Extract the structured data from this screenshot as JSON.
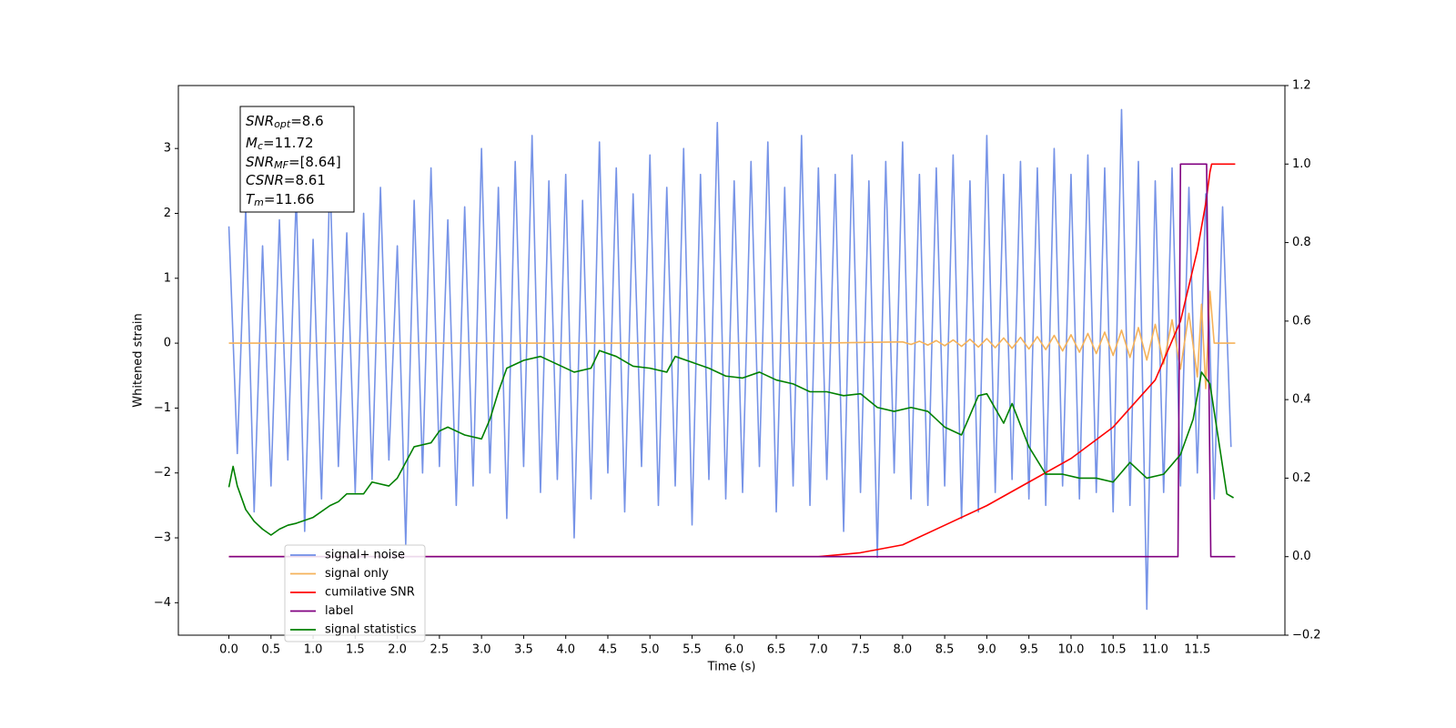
{
  "chart_data": {
    "type": "line",
    "xlabel": "Time (s)",
    "ylabel": "Whitened strain",
    "xlim": [
      -0.6,
      12.54
    ],
    "ylim": [
      -4.5,
      3.97
    ],
    "y2lim": [
      -0.2,
      1.2
    ],
    "xticks": [
      {
        "value": 0,
        "label": "0.0"
      },
      0.5,
      {
        "value": 1,
        "label": "1.0"
      },
      1.5,
      {
        "value": 2,
        "label": "2.0"
      },
      2.5,
      {
        "value": 3,
        "label": "3.0"
      },
      3.5,
      {
        "value": 4,
        "label": "4.0"
      },
      4.5,
      {
        "value": 5,
        "label": "5.0"
      },
      5.5,
      {
        "value": 6,
        "label": "6.0"
      },
      6.5,
      {
        "value": 7,
        "label": "7.0"
      },
      7.5,
      {
        "value": 8,
        "label": "8.0"
      },
      8.5,
      {
        "value": 9,
        "label": "9.0"
      },
      9.5,
      {
        "value": 10,
        "label": "10.0"
      },
      10.5,
      {
        "value": 11,
        "label": "11.0"
      },
      11.5
    ],
    "yticks": [
      {
        "value": -4,
        "label": "−4"
      },
      {
        "value": -3,
        "label": "−3"
      },
      {
        "value": -2,
        "label": "−2"
      },
      {
        "value": -1,
        "label": "−1"
      },
      0,
      1,
      2,
      3
    ],
    "y2ticks": [
      {
        "value": -0.2,
        "label": "−0.2"
      },
      {
        "value": 0,
        "label": "0.0"
      },
      0.2,
      0.4,
      0.6,
      0.8,
      {
        "value": 1,
        "label": "1.0"
      },
      1.2
    ],
    "legend": "lower left",
    "annotations": [
      {
        "text": "SNR",
        "sub": "opt",
        "value": "=8.6"
      },
      {
        "text": "M",
        "sub": "c",
        "value": "=11.72"
      },
      {
        "text": "SNR",
        "sub": "MF",
        "value": "=[8.64]"
      },
      {
        "text": "CSNR",
        "value": "=8.61"
      },
      {
        "text": "T",
        "sub": "m",
        "value": "=11.66"
      }
    ],
    "series": [
      {
        "name": "signal+ noise",
        "color": "#6f8de6",
        "x": [
          0,
          0.1,
          0.2,
          0.3,
          0.4,
          0.5,
          0.6,
          0.7,
          0.8,
          0.9,
          1,
          1.1,
          1.2,
          1.3,
          1.4,
          1.5,
          1.6,
          1.7,
          1.8,
          1.9,
          2,
          2.1,
          2.2,
          2.3,
          2.4,
          2.5,
          2.6,
          2.7,
          2.8,
          2.9,
          3,
          3.1,
          3.2,
          3.3,
          3.4,
          3.5,
          3.6,
          3.7,
          3.8,
          3.9,
          4,
          4.1,
          4.2,
          4.3,
          4.4,
          4.5,
          4.6,
          4.7,
          4.8,
          4.9,
          5,
          5.1,
          5.2,
          5.3,
          5.4,
          5.5,
          5.6,
          5.7,
          5.8,
          5.9,
          6,
          6.1,
          6.2,
          6.3,
          6.4,
          6.5,
          6.6,
          6.7,
          6.8,
          6.9,
          7,
          7.1,
          7.2,
          7.3,
          7.4,
          7.5,
          7.6,
          7.7,
          7.8,
          7.9,
          8,
          8.1,
          8.2,
          8.3,
          8.4,
          8.5,
          8.6,
          8.7,
          8.8,
          8.9,
          9,
          9.1,
          9.2,
          9.3,
          9.4,
          9.5,
          9.6,
          9.7,
          9.8,
          9.9,
          10,
          10.1,
          10.2,
          10.3,
          10.4,
          10.5,
          10.6,
          10.7,
          10.8,
          10.9,
          11,
          11.1,
          11.2,
          11.3,
          11.4,
          11.5,
          11.6,
          11.7,
          11.8,
          11.9
        ],
        "values": [
          1.8,
          -1.7,
          2.1,
          -2.6,
          1.5,
          -2.2,
          1.9,
          -1.8,
          2.3,
          -2.9,
          1.6,
          -2.4,
          2.6,
          -1.9,
          1.7,
          -2.3,
          2.0,
          -2.1,
          2.4,
          -1.8,
          1.5,
          -3.1,
          2.2,
          -2.0,
          2.7,
          -1.9,
          1.9,
          -2.5,
          2.1,
          -2.2,
          3.0,
          -2.0,
          2.4,
          -2.7,
          2.8,
          -1.9,
          3.2,
          -2.3,
          2.5,
          -2.1,
          2.6,
          -3.0,
          2.2,
          -2.4,
          3.1,
          -2.0,
          2.7,
          -2.6,
          2.3,
          -1.9,
          2.9,
          -2.5,
          2.4,
          -2.2,
          3.0,
          -2.8,
          2.6,
          -2.1,
          3.4,
          -2.4,
          2.5,
          -2.3,
          2.8,
          -1.9,
          3.1,
          -2.6,
          2.4,
          -2.2,
          3.2,
          -2.5,
          2.7,
          -2.1,
          2.6,
          -2.9,
          2.9,
          -2.3,
          2.5,
          -3.3,
          2.8,
          -2.0,
          3.1,
          -2.4,
          2.6,
          -2.5,
          2.7,
          -2.2,
          2.9,
          -2.7,
          2.5,
          -2.6,
          3.2,
          -2.3,
          2.6,
          -2.1,
          2.8,
          -2.4,
          2.7,
          -2.5,
          3.0,
          -2.2,
          2.6,
          -2.4,
          2.9,
          -2.3,
          2.7,
          -2.6,
          3.6,
          -2.5,
          2.8,
          -4.1,
          2.5,
          -2.3,
          2.7,
          -2.2,
          2.4,
          -2.0,
          2.3,
          -2.4,
          2.1,
          -1.6
        ]
      },
      {
        "name": "signal only",
        "color": "#f5b25a",
        "x": [
          0,
          7,
          8,
          8.1,
          8.2,
          8.3,
          8.4,
          8.5,
          8.6,
          8.7,
          8.8,
          8.9,
          9,
          9.1,
          9.2,
          9.3,
          9.4,
          9.5,
          9.6,
          9.7,
          9.8,
          9.9,
          10,
          10.1,
          10.2,
          10.3,
          10.4,
          10.5,
          10.6,
          10.7,
          10.8,
          10.9,
          11,
          11.1,
          11.2,
          11.3,
          11.4,
          11.5,
          11.55,
          11.6,
          11.65,
          11.7,
          11.95
        ],
        "values": [
          0,
          0,
          0.02,
          -0.02,
          0.03,
          -0.03,
          0.04,
          -0.04,
          0.05,
          -0.05,
          0.06,
          -0.06,
          0.07,
          -0.07,
          0.08,
          -0.08,
          0.09,
          -0.09,
          0.1,
          -0.1,
          0.12,
          -0.12,
          0.13,
          -0.14,
          0.15,
          -0.16,
          0.17,
          -0.19,
          0.2,
          -0.22,
          0.24,
          -0.26,
          0.29,
          -0.32,
          0.36,
          -0.4,
          0.46,
          -0.52,
          0.6,
          -0.7,
          0.8,
          0,
          0
        ]
      },
      {
        "name": "cumilative SNR",
        "color": "#ff0000",
        "axis": "y2",
        "x": [
          0,
          7,
          7.5,
          8,
          8.5,
          9,
          9.5,
          10,
          10.5,
          11,
          11.3,
          11.5,
          11.6,
          11.65,
          11.67,
          11.95
        ],
        "values": [
          0,
          0,
          0.01,
          0.03,
          0.08,
          0.13,
          0.19,
          0.25,
          0.33,
          0.45,
          0.6,
          0.78,
          0.9,
          0.98,
          1,
          1
        ]
      },
      {
        "name": "label",
        "color": "#800080",
        "axis": "y2",
        "x": [
          0,
          11.27,
          11.3,
          11.61,
          11.66,
          11.95
        ],
        "values": [
          0,
          0,
          1,
          1,
          0,
          0
        ]
      },
      {
        "name": "signal statistics",
        "color": "#008000",
        "axis": "y2",
        "x": [
          0,
          0.05,
          0.1,
          0.2,
          0.3,
          0.4,
          0.5,
          0.6,
          0.7,
          0.8,
          1,
          1.2,
          1.3,
          1.4,
          1.6,
          1.7,
          1.9,
          2,
          2.1,
          2.2,
          2.4,
          2.5,
          2.6,
          2.8,
          3,
          3.1,
          3.2,
          3.3,
          3.5,
          3.7,
          3.9,
          4.1,
          4.3,
          4.4,
          4.6,
          4.8,
          5,
          5.2,
          5.3,
          5.5,
          5.7,
          5.9,
          6.1,
          6.3,
          6.5,
          6.7,
          6.9,
          7.1,
          7.3,
          7.5,
          7.7,
          7.9,
          8.1,
          8.3,
          8.5,
          8.7,
          8.9,
          9,
          9.2,
          9.3,
          9.5,
          9.7,
          9.9,
          10.1,
          10.3,
          10.5,
          10.7,
          10.9,
          11.1,
          11.3,
          11.45,
          11.55,
          11.65,
          11.75,
          11.85,
          11.93
        ],
        "values": [
          0.177,
          0.23,
          0.18,
          0.12,
          0.09,
          0.07,
          0.055,
          0.07,
          0.08,
          0.085,
          0.1,
          0.13,
          0.14,
          0.16,
          0.16,
          0.19,
          0.18,
          0.2,
          0.24,
          0.28,
          0.29,
          0.32,
          0.33,
          0.31,
          0.3,
          0.35,
          0.42,
          0.48,
          0.5,
          0.51,
          0.49,
          0.47,
          0.48,
          0.525,
          0.51,
          0.485,
          0.48,
          0.47,
          0.51,
          0.495,
          0.48,
          0.46,
          0.455,
          0.47,
          0.45,
          0.44,
          0.42,
          0.42,
          0.41,
          0.415,
          0.38,
          0.37,
          0.38,
          0.37,
          0.33,
          0.31,
          0.41,
          0.415,
          0.34,
          0.39,
          0.28,
          0.21,
          0.21,
          0.2,
          0.2,
          0.19,
          0.24,
          0.2,
          0.21,
          0.26,
          0.35,
          0.47,
          0.44,
          0.3,
          0.16,
          0.15
        ]
      }
    ]
  }
}
